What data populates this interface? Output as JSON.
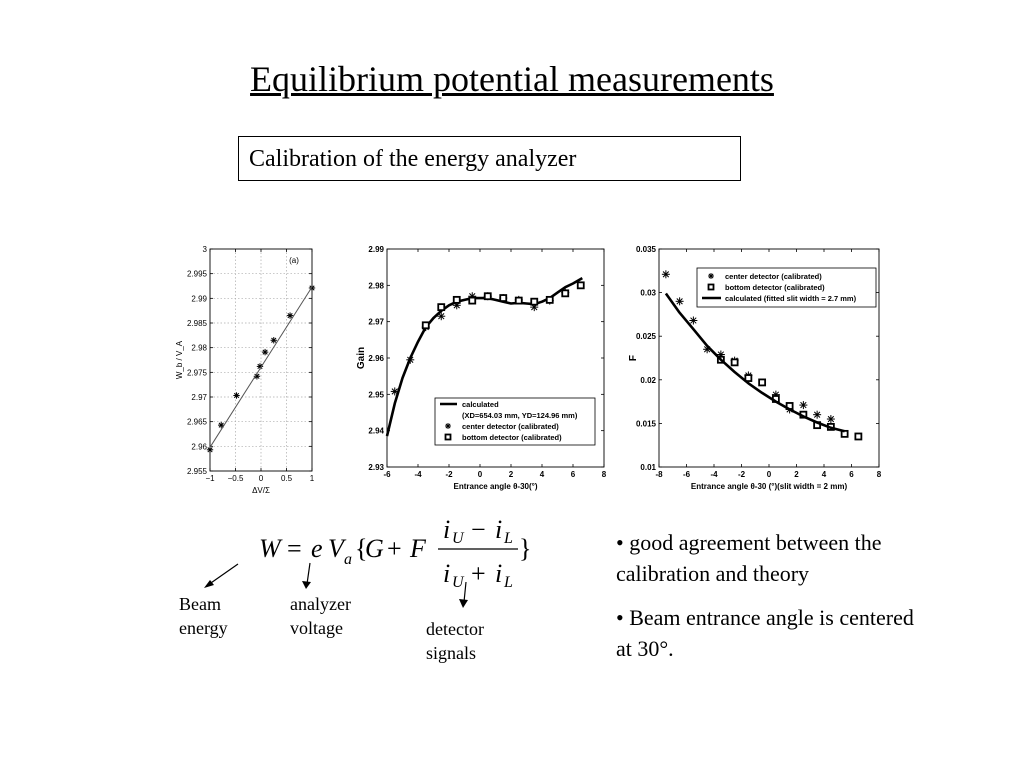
{
  "slide": {
    "title": "Equilibrium potential measurements",
    "subtitle": "Calibration of the energy analyzer"
  },
  "labels": {
    "beam_energy": [
      "Beam",
      "energy"
    ],
    "analyzer_voltage": [
      "analyzer",
      "voltage"
    ],
    "detector_signals": [
      "detector",
      "signals"
    ]
  },
  "equation": {
    "lhs": "W",
    "eq": "=",
    "e": "e",
    "V": "V",
    "a": "a",
    "lbrace": "{",
    "G": "G",
    "plus": "+",
    "F": "F",
    "rbrace": "}",
    "i1": "i",
    "U": "U",
    "minus": "−",
    "i2": "i",
    "L": "L",
    "i3": "i",
    "U2": "U",
    "plus2": "+",
    "i4": "i",
    "L2": "L"
  },
  "bullets": [
    "good agreement between the calibration and theory",
    "Beam entrance angle is centered at 30°."
  ],
  "chart_data": [
    {
      "type": "scatter",
      "annotation": "(a)",
      "xlabel": "ΔV/Σ",
      "ylabel": "W_b / V_A",
      "xlim": [
        -1,
        1
      ],
      "ylim": [
        2.955,
        3.0
      ],
      "xticks": [
        "−1",
        "−0.5",
        "0",
        "0.5",
        "1"
      ],
      "yticks": [
        "2.955",
        "2.96",
        "2.965",
        "2.97",
        "2.975",
        "2.98",
        "2.985",
        "2.99",
        "2.995",
        "3"
      ],
      "grid": true,
      "series": [
        {
          "marker": "asterisk",
          "x": [
            -1.0,
            -0.78,
            -0.48,
            -0.08,
            -0.02,
            0.08,
            0.25,
            0.57,
            1.0
          ],
          "y": [
            2.9593,
            2.9643,
            2.9703,
            2.9742,
            2.9762,
            2.9791,
            2.9815,
            2.9865,
            2.9921
          ]
        },
        {
          "style": "line",
          "x": [
            -1.0,
            1.0
          ],
          "y": [
            2.9598,
            2.9923
          ]
        }
      ]
    },
    {
      "type": "line",
      "xlabel": "Entrance angle θ-30(°)",
      "ylabel": "Gain",
      "xlim": [
        -6,
        8
      ],
      "ylim": [
        2.93,
        2.99
      ],
      "xticks": [
        "-6",
        "-4",
        "-2",
        "0",
        "2",
        "4",
        "6",
        "8"
      ],
      "yticks": [
        "2.93",
        "2.94",
        "2.95",
        "2.96",
        "2.97",
        "2.98",
        "2.99"
      ],
      "legend": [
        "calculated",
        "(XD=654.03 mm, YD=124.96 mm)",
        "center detector (calibrated)",
        "bottom detector (calibrated)"
      ],
      "legend_position": "lower-right",
      "series": [
        {
          "name": "calculated",
          "style": "line",
          "x": [
            -6.0,
            -5.5,
            -5.0,
            -4.5,
            -4.0,
            -3.5,
            -3.0,
            -2.5,
            -2.0,
            -1.5,
            -1.0,
            -0.5,
            0.0,
            0.5,
            1.0,
            1.5,
            2.0,
            2.5,
            3.0,
            3.5,
            4.0,
            4.5,
            5.0,
            5.5,
            6.0,
            6.6
          ],
          "y": [
            2.9385,
            2.9475,
            2.9545,
            2.96,
            2.9645,
            2.9685,
            2.971,
            2.973,
            2.9745,
            2.9755,
            2.976,
            2.9765,
            2.9765,
            2.9765,
            2.976,
            2.9755,
            2.975,
            2.9752,
            2.975,
            2.9748,
            2.9755,
            2.9765,
            2.978,
            2.9795,
            2.9805,
            2.982
          ]
        },
        {
          "name": "center detector (calibrated)",
          "marker": "asterisk",
          "x": [
            -5.5,
            -4.5,
            -3.5,
            -2.5,
            -1.5,
            -0.5,
            0.5,
            1.5,
            2.5,
            3.5,
            4.5,
            5.5
          ],
          "y": [
            2.9508,
            2.9595,
            2.9685,
            2.9715,
            2.9745,
            2.977,
            2.977,
            2.9765,
            2.976,
            2.974,
            2.9758,
            2.978
          ]
        },
        {
          "name": "bottom detector (calibrated)",
          "marker": "square",
          "x": [
            -3.5,
            -2.5,
            -1.5,
            -0.5,
            0.5,
            1.5,
            2.5,
            3.5,
            4.5,
            5.5,
            6.5
          ],
          "y": [
            2.969,
            2.974,
            2.976,
            2.9758,
            2.977,
            2.9765,
            2.9758,
            2.9755,
            2.976,
            2.9778,
            2.98
          ]
        }
      ]
    },
    {
      "type": "line",
      "xlabel": "Entrance angle θ-30 (°)(slit width = 2 mm)",
      "ylabel": "F",
      "xlim": [
        -8,
        8
      ],
      "ylim": [
        0.01,
        0.035
      ],
      "xticks": [
        "-8",
        "-6",
        "-4",
        "-2",
        "0",
        "2",
        "4",
        "6",
        "8"
      ],
      "yticks": [
        "0.01",
        "0.015",
        "0.02",
        "0.025",
        "0.03",
        "0.035"
      ],
      "legend": [
        "center detector (calibrated)",
        "bottom detector (calibrated)",
        "calculated (fitted slit width = 2.7 mm)"
      ],
      "legend_position": "top-right",
      "series": [
        {
          "name": "center detector (calibrated)",
          "marker": "asterisk",
          "x": [
            -7.5,
            -6.5,
            -5.5,
            -4.5,
            -3.5,
            -2.5,
            -1.5,
            0.5,
            1.5,
            2.5,
            3.5,
            4.5
          ],
          "y": [
            0.0321,
            0.029,
            0.0268,
            0.0235,
            0.0229,
            0.0222,
            0.0205,
            0.0183,
            0.0166,
            0.0171,
            0.016,
            0.0155
          ]
        },
        {
          "name": "bottom detector (calibrated)",
          "marker": "square",
          "x": [
            -3.5,
            -2.5,
            -1.5,
            -0.5,
            0.5,
            1.5,
            2.5,
            3.5,
            4.5,
            5.5,
            6.5
          ],
          "y": [
            0.0223,
            0.022,
            0.0202,
            0.0197,
            0.0178,
            0.017,
            0.016,
            0.0148,
            0.0146,
            0.0138,
            0.0135
          ]
        },
        {
          "name": "calculated (fitted slit width = 2.7 mm)",
          "style": "line",
          "x": [
            -7.5,
            -6.5,
            -5.5,
            -4.5,
            -3.5,
            -2.5,
            -1.5,
            -0.5,
            0.5,
            1.5,
            2.5,
            3.5,
            4.5,
            5.5
          ],
          "y": [
            0.0299,
            0.0277,
            0.0258,
            0.0239,
            0.0223,
            0.0209,
            0.0196,
            0.0185,
            0.0175,
            0.0166,
            0.0158,
            0.0151,
            0.0145,
            0.0141
          ]
        }
      ]
    }
  ]
}
